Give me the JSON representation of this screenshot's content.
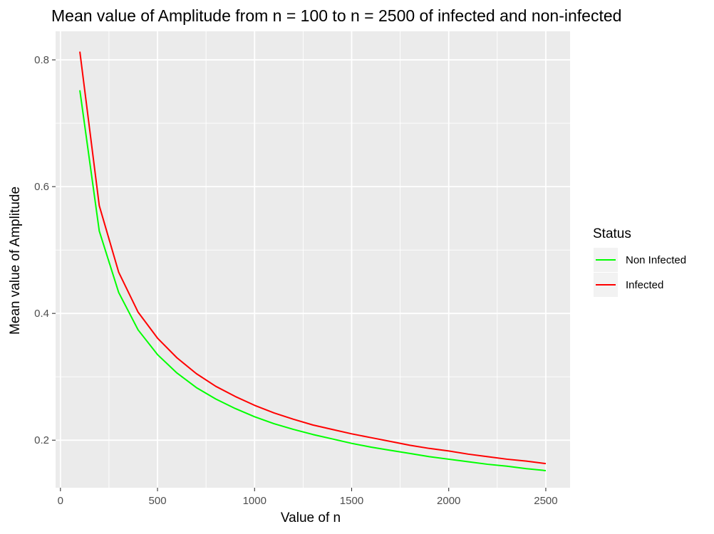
{
  "chart_data": {
    "type": "line",
    "title": "Mean value of Amplitude from n = 100 to n = 2500 of infected and non-infected",
    "xlabel": "Value of n",
    "ylabel": "Mean value of Amplitude",
    "xlim": [
      -25,
      2625
    ],
    "ylim": [
      0.125,
      0.845
    ],
    "x_ticks": [
      0,
      500,
      1000,
      1500,
      2000,
      2500
    ],
    "x_tick_labels": [
      "0",
      "500",
      "1000",
      "1500",
      "2000",
      "2500"
    ],
    "y_ticks": [
      0.2,
      0.4,
      0.6,
      0.8
    ],
    "y_tick_labels": [
      "0.2",
      "0.4",
      "0.6",
      "0.8"
    ],
    "grid": true,
    "legend": {
      "title": "Status",
      "position": "right"
    },
    "x": [
      100,
      200,
      300,
      400,
      500,
      600,
      700,
      800,
      900,
      1000,
      1100,
      1200,
      1300,
      1400,
      1500,
      1600,
      1700,
      1800,
      1900,
      2000,
      2100,
      2200,
      2300,
      2400,
      2500
    ],
    "series": [
      {
        "name": "Non Infected",
        "color": "#00ff00",
        "values": [
          0.752,
          0.53,
          0.433,
          0.374,
          0.335,
          0.306,
          0.283,
          0.265,
          0.25,
          0.237,
          0.226,
          0.217,
          0.209,
          0.202,
          0.195,
          0.189,
          0.184,
          0.179,
          0.174,
          0.17,
          0.166,
          0.162,
          0.159,
          0.155,
          0.152
        ]
      },
      {
        "name": "Infected",
        "color": "#ff0000",
        "values": [
          0.813,
          0.57,
          0.465,
          0.402,
          0.361,
          0.33,
          0.305,
          0.285,
          0.269,
          0.255,
          0.243,
          0.233,
          0.224,
          0.217,
          0.21,
          0.204,
          0.198,
          0.192,
          0.187,
          0.183,
          0.178,
          0.174,
          0.17,
          0.167,
          0.163
        ]
      }
    ]
  }
}
